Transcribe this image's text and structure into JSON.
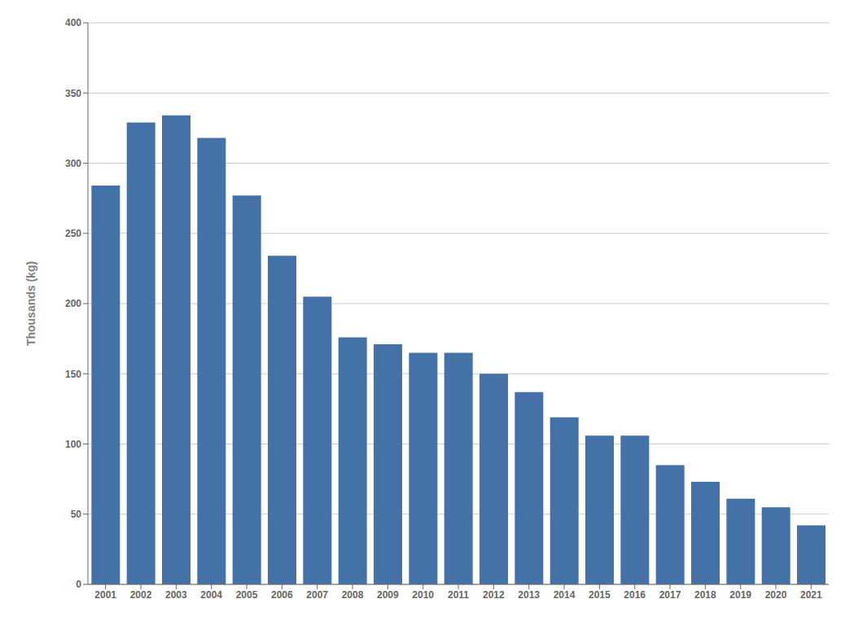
{
  "chart_data": {
    "type": "bar",
    "categories": [
      "2001",
      "2002",
      "2003",
      "2004",
      "2005",
      "2006",
      "2007",
      "2008",
      "2009",
      "2010",
      "2011",
      "2012",
      "2013",
      "2014",
      "2015",
      "2016",
      "2017",
      "2018",
      "2019",
      "2020",
      "2021"
    ],
    "values": [
      284,
      329,
      334,
      318,
      277,
      234,
      205,
      176,
      171,
      165,
      165,
      150,
      137,
      119,
      106,
      106,
      85,
      73,
      61,
      55,
      42
    ],
    "color": "#4472a8",
    "ylabel": "Thousands (kg)",
    "ylim": [
      0,
      400
    ],
    "yticks": [
      0,
      50,
      100,
      150,
      200,
      250,
      300,
      350,
      400
    ],
    "grid": true
  }
}
